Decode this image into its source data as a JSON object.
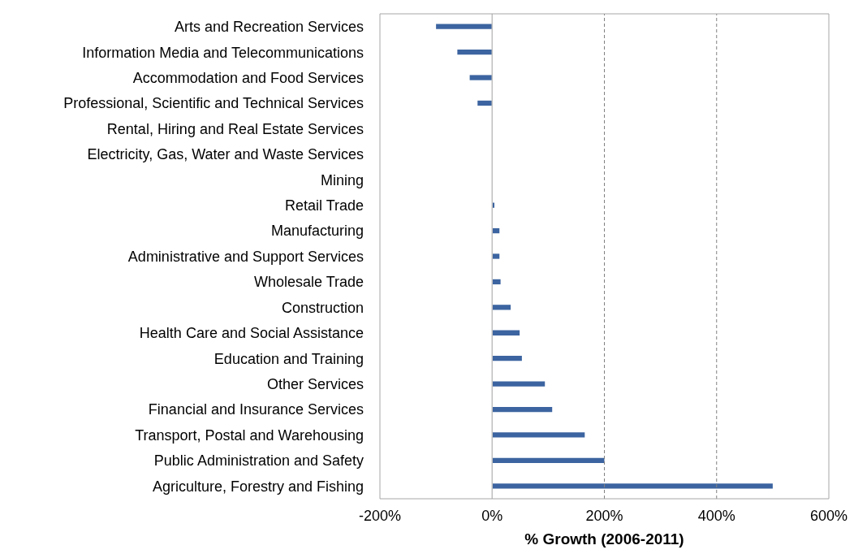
{
  "chart_data": {
    "type": "bar",
    "orientation": "horizontal",
    "xlabel": "% Growth (2006-2011)",
    "categories": [
      "Arts and Recreation Services",
      "Information Media and Telecommunications",
      "Accommodation and Food Services",
      "Professional, Scientific and Technical Services",
      "Rental, Hiring and Real Estate Services",
      "Electricity, Gas, Water and Waste Services",
      "Mining",
      "Retail Trade",
      "Manufacturing",
      "Administrative and Support Services",
      "Wholesale Trade",
      "Construction",
      "Health Care and Social Assistance",
      "Education and Training",
      "Other Services",
      "Financial and Insurance Services",
      "Transport, Postal and Warehousing",
      "Public Administration and Safety",
      "Agriculture, Forestry and Fishing"
    ],
    "values": [
      -100,
      -62,
      -40,
      -26,
      0,
      0,
      0,
      4,
      13,
      13,
      15,
      33,
      49,
      53,
      94,
      107,
      165,
      200,
      500
    ],
    "color": "#3c64a0",
    "xlim": [
      -200,
      600
    ],
    "xticks": [
      {
        "value": -200,
        "label": "-200%"
      },
      {
        "value": 0,
        "label": "0%"
      },
      {
        "value": 200,
        "label": "200%"
      },
      {
        "value": 400,
        "label": "400%"
      },
      {
        "value": 600,
        "label": "600%"
      }
    ],
    "grid": "x",
    "line_style": "dashed"
  }
}
